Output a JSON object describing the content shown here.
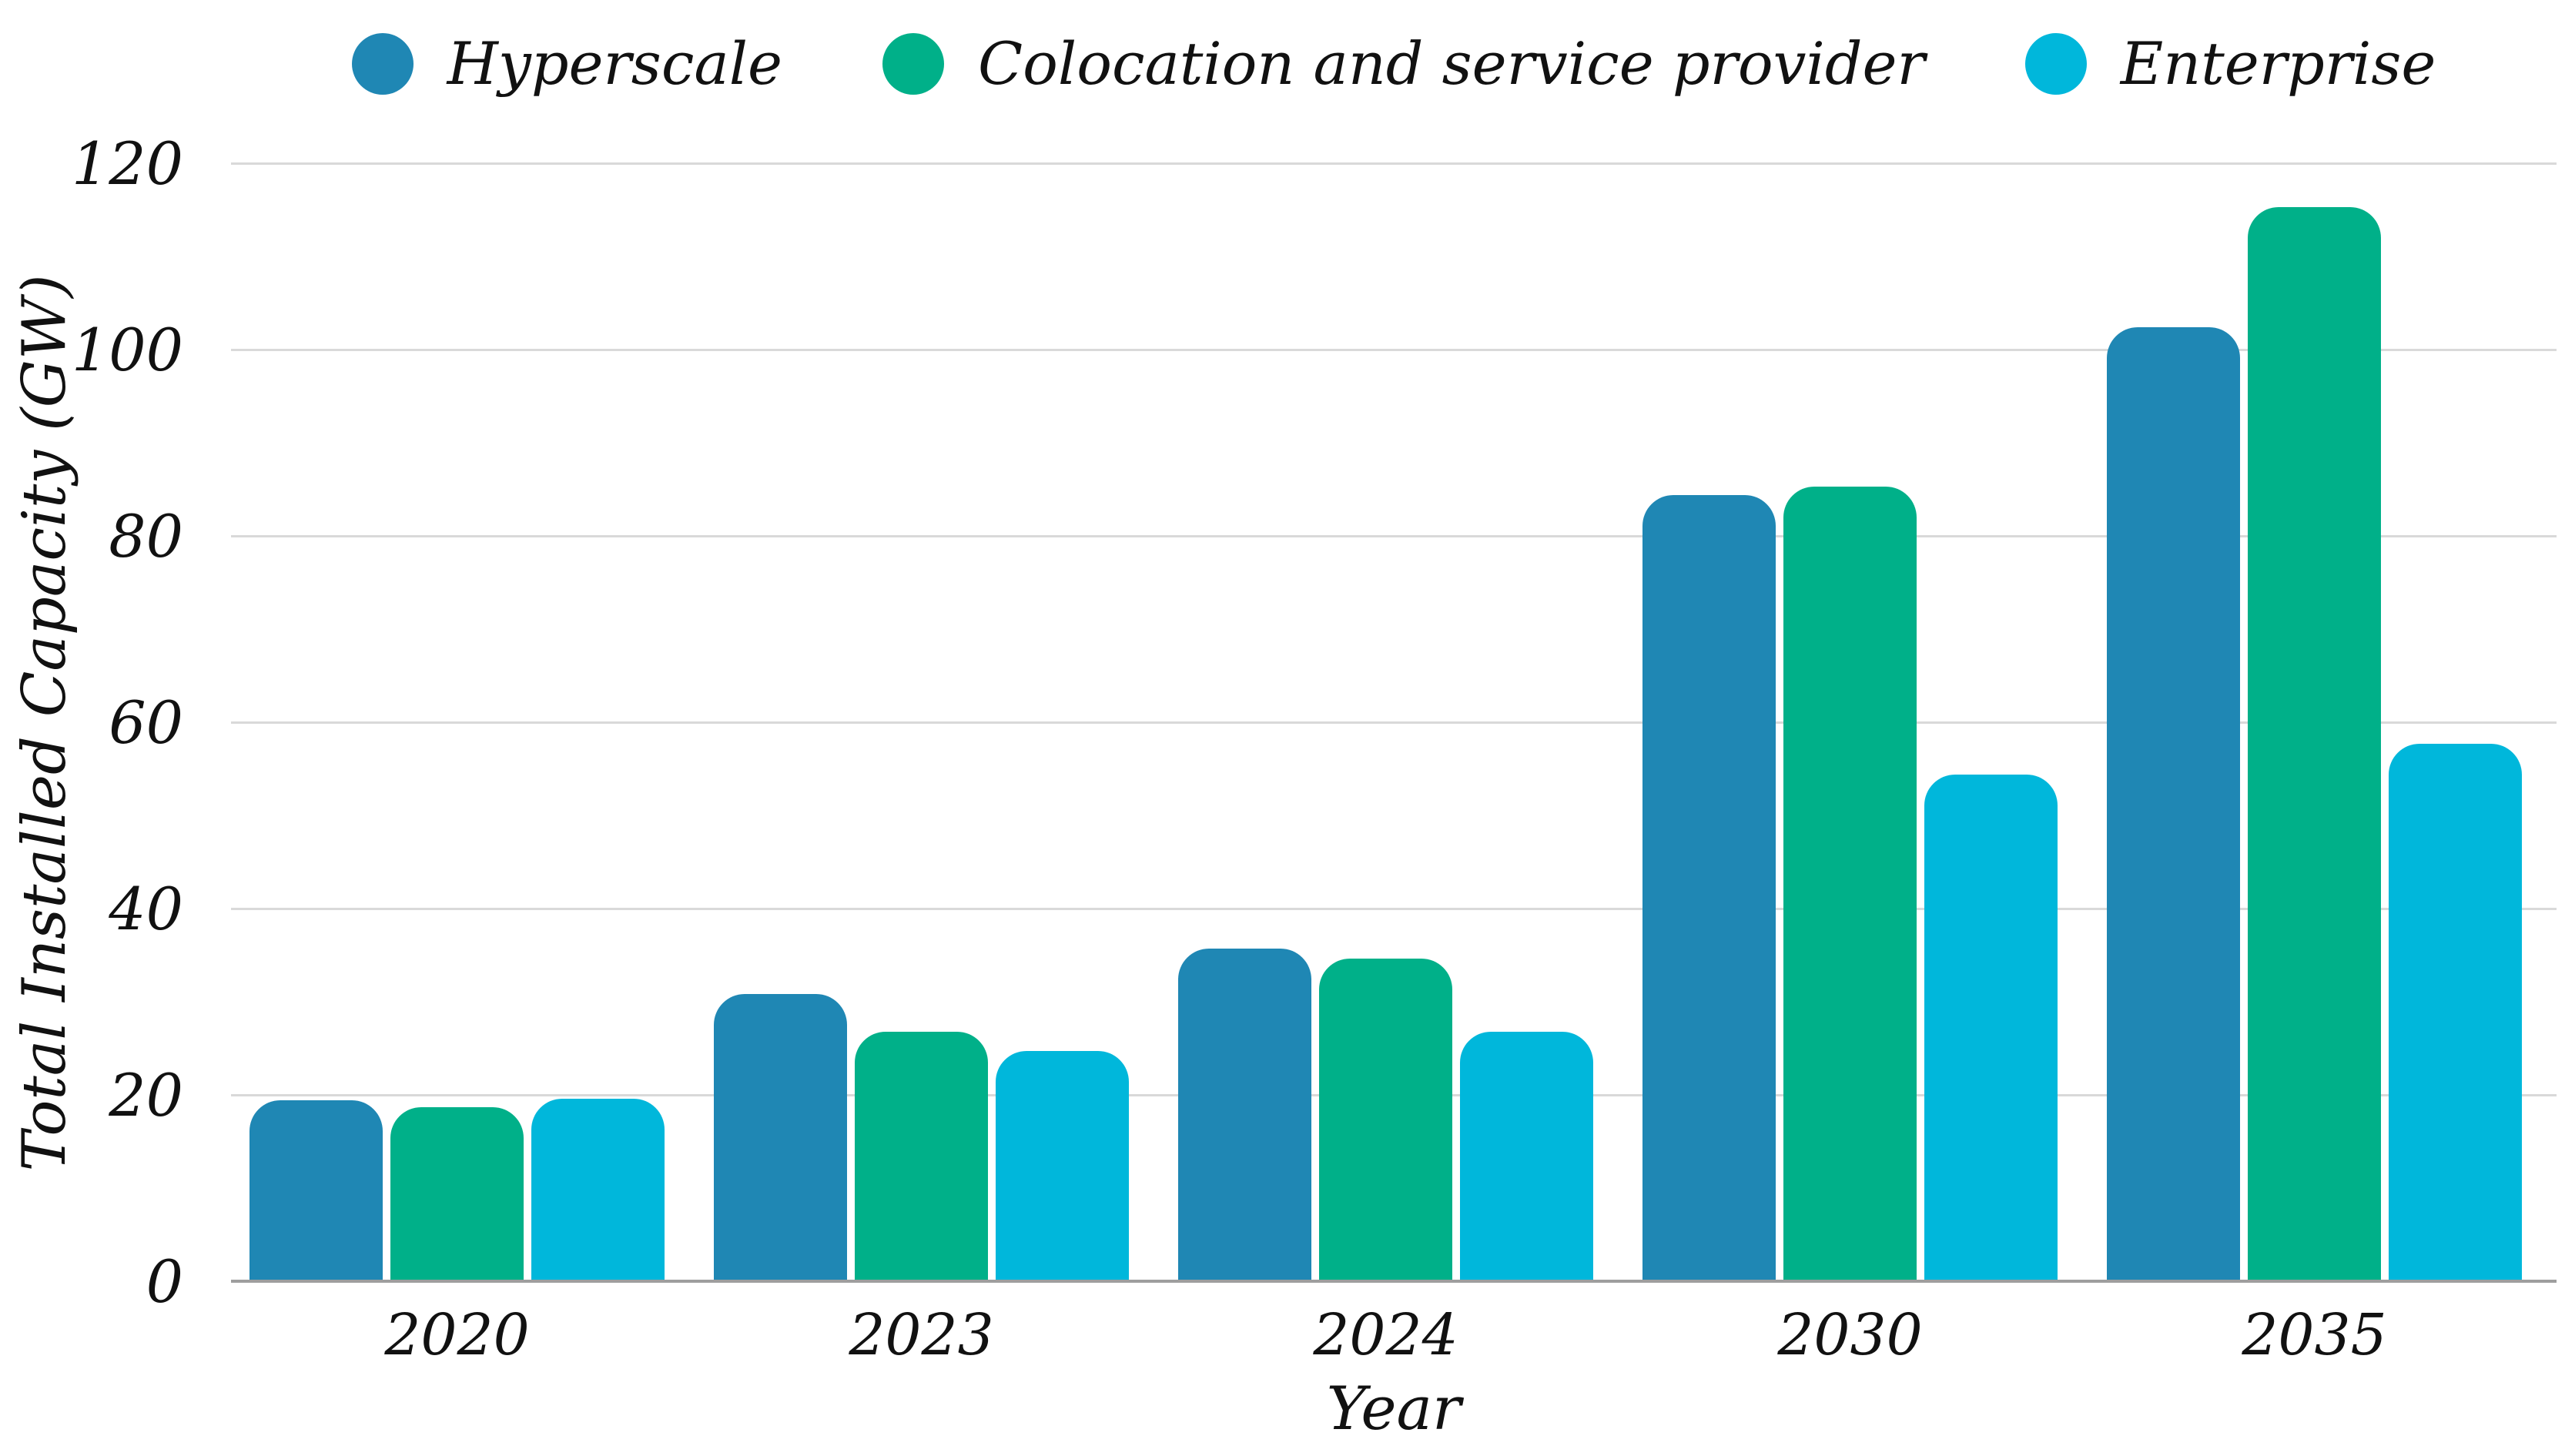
{
  "chart_data": {
    "type": "bar",
    "title": "",
    "xlabel": "Year",
    "ylabel": "Total Installed Capacity (GW)",
    "categories": [
      "2020",
      "2023",
      "2024",
      "2030",
      "2035"
    ],
    "series": [
      {
        "name": "Hyperscale",
        "color": "#1F87B4",
        "values": [
          19.5,
          30.9,
          35.8,
          84.5,
          102.5
        ]
      },
      {
        "name": "Colocation and service provider",
        "color": "#00B089",
        "values": [
          18.8,
          26.9,
          34.7,
          85.4,
          115.4
        ]
      },
      {
        "name": "Enterprise",
        "color": "#00B7DB",
        "values": [
          19.7,
          24.8,
          26.9,
          54.5,
          57.8
        ]
      }
    ],
    "ylim": [
      0,
      120
    ],
    "yticks": [
      0,
      20,
      40,
      60,
      80,
      100,
      120
    ],
    "grid": true,
    "legend_position": "top",
    "gridline_color": "#D9D9D9",
    "axis_line_color": "#9E9E9E",
    "text_color": "#111111"
  }
}
